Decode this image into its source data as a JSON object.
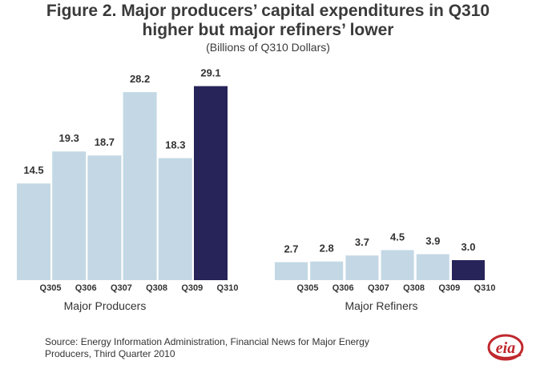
{
  "header": {
    "title_line1": "Figure 2. Major producers’ capital expenditures in Q310",
    "title_line2": "higher but major refiners’ lower",
    "subtitle": "(Billions of Q310 Dollars)"
  },
  "chart_data": {
    "type": "bar",
    "unit": "Billions of Q310 Dollars",
    "groups": [
      {
        "name": "Major Producers",
        "categories": [
          "Q305",
          "Q306",
          "Q307",
          "Q308",
          "Q309",
          "Q310"
        ],
        "values": [
          14.5,
          19.3,
          18.7,
          28.2,
          18.3,
          29.1
        ]
      },
      {
        "name": "Major Refiners",
        "categories": [
          "Q305",
          "Q306",
          "Q307",
          "Q308",
          "Q309",
          "Q310"
        ],
        "values": [
          2.7,
          2.8,
          3.7,
          4.5,
          3.9,
          3.0
        ]
      }
    ],
    "highlight_category": "Q310",
    "colors": {
      "bar": "#c3d8e4",
      "highlight": "#262458",
      "label": "#333333"
    }
  },
  "source": {
    "line1": "Source: Energy Information Administration, Financial News for Major Energy",
    "line2": "Producers, Third Quarter 2010"
  },
  "logo": {
    "text": "eia",
    "color": "#c0282d"
  }
}
